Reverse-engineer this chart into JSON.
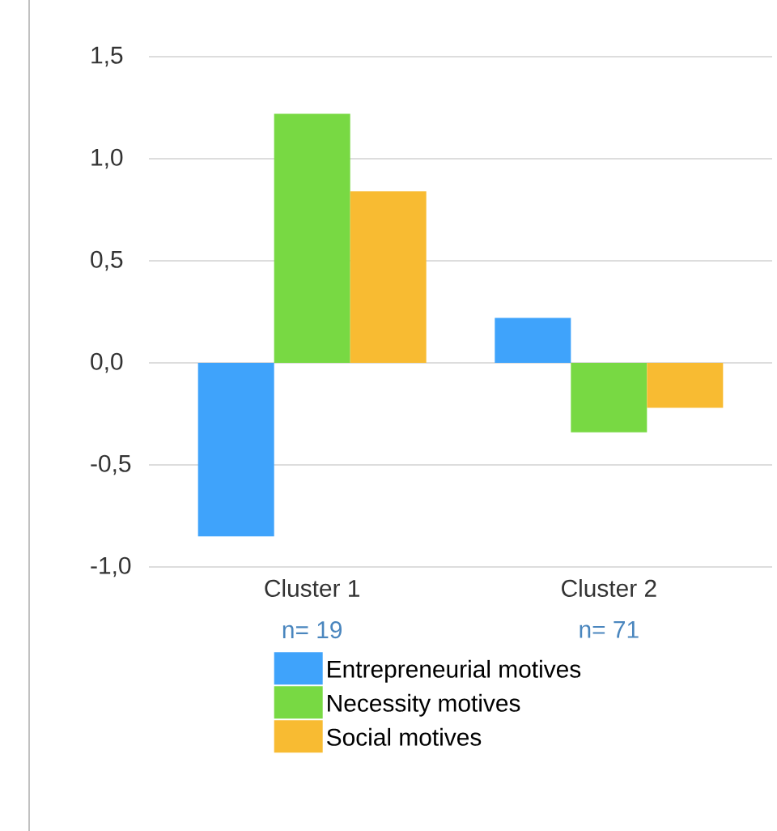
{
  "chart_data": {
    "type": "bar",
    "categories": [
      "Cluster 1",
      "Cluster 2"
    ],
    "series": [
      {
        "name": "Entrepreneurial motives",
        "color": "#3fa3fb",
        "values": [
          -0.85,
          0.22
        ]
      },
      {
        "name": "Necessity motives",
        "color": "#78d943",
        "values": [
          1.22,
          -0.34
        ]
      },
      {
        "name": "Social motives",
        "color": "#f8bb32",
        "values": [
          0.84,
          -0.22
        ]
      }
    ],
    "ylim": [
      -1.0,
      1.5
    ],
    "yticks": [
      {
        "value": -1.0,
        "label": "-1,0"
      },
      {
        "value": -0.5,
        "label": "-0,5"
      },
      {
        "value": 0.0,
        "label": "0,0"
      },
      {
        "value": 0.5,
        "label": "0,5"
      },
      {
        "value": 1.0,
        "label": "1,0"
      },
      {
        "value": 1.5,
        "label": "1,5"
      }
    ],
    "annotations": [
      "n= 19",
      "n= 71"
    ],
    "grid": "y",
    "legend": "bottom"
  }
}
